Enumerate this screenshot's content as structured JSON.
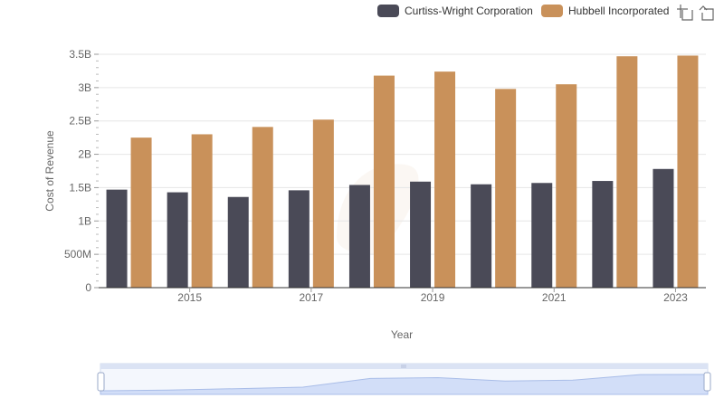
{
  "toolbar": {
    "zoom_icon": "zoom-crosshair-icon",
    "restore_icon": "restore-arrow-icon"
  },
  "chart_data": {
    "type": "bar",
    "title": "",
    "xlabel": "Year",
    "ylabel": "Cost of Revenue",
    "categories": [
      "2014",
      "2015",
      "2016",
      "2017",
      "2018",
      "2019",
      "2020",
      "2021",
      "2022",
      "2023"
    ],
    "x_tick_labels": [
      "2015",
      "2017",
      "2019",
      "2021",
      "2023"
    ],
    "y_tick_labels": [
      "0",
      "500M",
      "1B",
      "1.5B",
      "2B",
      "2.5B",
      "3B",
      "3.5B"
    ],
    "ylim": [
      0,
      3500000000
    ],
    "grid": true,
    "legend_position": "top-right",
    "series": [
      {
        "name": "Curtiss-Wright Corporation",
        "color": "#4a4a57",
        "values": [
          1470000000,
          1430000000,
          1360000000,
          1460000000,
          1540000000,
          1590000000,
          1550000000,
          1570000000,
          1600000000,
          1780000000
        ]
      },
      {
        "name": "Hubbell Incorporated",
        "color": "#c9915a",
        "values": [
          2250000000,
          2300000000,
          2410000000,
          2520000000,
          3180000000,
          3240000000,
          2980000000,
          3050000000,
          3470000000,
          3480000000
        ]
      }
    ]
  }
}
